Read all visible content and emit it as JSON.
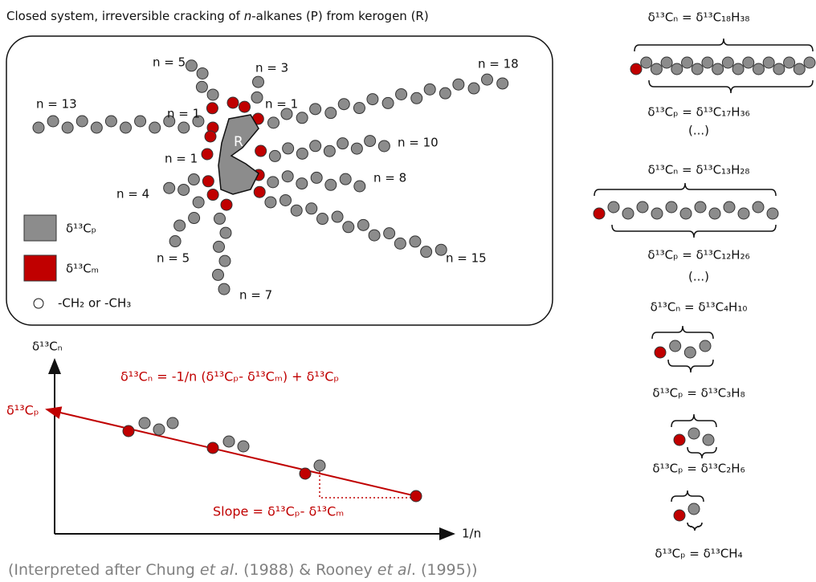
{
  "title": {
    "parts": [
      "Closed system, irreversible cracking of ",
      "n",
      "-alkanes (P) from kerogen (R)"
    ]
  },
  "diagram": {
    "kerogen": "R",
    "chains": [
      {
        "label": "n = 5"
      },
      {
        "label": "n = 3"
      },
      {
        "label": "n = 18"
      },
      {
        "label": "n = 13"
      },
      {
        "label": "n = 1"
      },
      {
        "label": "n = 1"
      },
      {
        "label": "n = 10"
      },
      {
        "label": "n = 1"
      },
      {
        "label": "n = 8"
      },
      {
        "label": "n = 4"
      },
      {
        "label": "n = 5"
      },
      {
        "label": "n = 15"
      },
      {
        "label": "n = 7"
      }
    ],
    "legend": [
      "δ¹³Cₚ",
      "δ¹³Cₘ",
      "-CH₂ or -CH₃"
    ]
  },
  "plot": {
    "y_axis": "δ¹³Cₙ",
    "x_axis": "1/n",
    "equation": "δ¹³Cₙ = -1/n (δ¹³Cₚ- δ¹³Cₘ) + δ¹³Cₚ",
    "intercept": "δ¹³Cₚ",
    "slope": "Slope = δ¹³Cₚ- δ¹³Cₘ"
  },
  "column": {
    "labels": [
      "δ¹³Cₙ = δ¹³C₁₈H₃₈",
      "δ¹³Cₚ = δ¹³C₁₇H₃₆",
      "(...)",
      "δ¹³Cₙ = δ¹³C₁₃H₂₈",
      "δ¹³Cₚ = δ¹³C₁₂H₂₆",
      "(...)",
      "δ¹³Cₙ = δ¹³C₄H₁₀",
      "δ¹³Cₚ = δ¹³C₃H₈",
      "δ¹³Cₚ = δ¹³C₂H₆",
      "δ¹³Cₚ = δ¹³CH₄"
    ]
  },
  "citation": {
    "parts": [
      "(Interpreted after Chung ",
      "et al",
      ". (1988) & Rooney ",
      "et al",
      ". (1995))"
    ]
  }
}
